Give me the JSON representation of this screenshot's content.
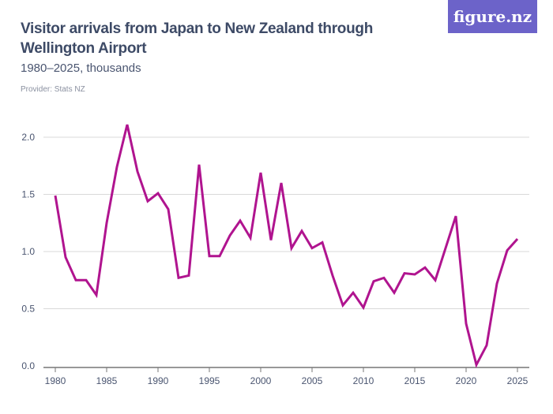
{
  "header": {
    "title": "Visitor arrivals from Japan to New Zealand through Wellington Airport",
    "subtitle": "1980–2025, thousands",
    "provider": "Provider: Stats NZ",
    "logo": "figure.nz"
  },
  "colors": {
    "line": "#b0148f",
    "logo_bg": "#6c63c9",
    "grid": "#d9d9d9"
  },
  "chart_data": {
    "type": "line",
    "title": "Visitor arrivals from Japan to New Zealand through Wellington Airport",
    "subtitle": "1980–2025, thousands",
    "xlim": [
      1980,
      2025
    ],
    "ylim": [
      0,
      2.0
    ],
    "grid": true,
    "x_ticks": [
      "1980",
      "1985",
      "1990",
      "1995",
      "2000",
      "2005",
      "2010",
      "2015",
      "2020",
      "2025"
    ],
    "y_ticks": [
      "0.0",
      "0.5",
      "1.0",
      "1.5",
      "2.0"
    ],
    "x": [
      1980,
      1981,
      1982,
      1983,
      1984,
      1985,
      1986,
      1987,
      1988,
      1989,
      1990,
      1991,
      1992,
      1993,
      1994,
      1995,
      1996,
      1997,
      1998,
      1999,
      2000,
      2001,
      2002,
      2003,
      2004,
      2005,
      2006,
      2007,
      2008,
      2009,
      2010,
      2011,
      2012,
      2013,
      2014,
      2015,
      2016,
      2017,
      2018,
      2019,
      2020,
      2021,
      2022,
      2023,
      2024,
      2025
    ],
    "values": [
      1.49,
      0.95,
      0.75,
      0.75,
      0.62,
      1.25,
      1.74,
      2.11,
      1.7,
      1.44,
      1.51,
      1.37,
      0.77,
      0.79,
      1.76,
      0.96,
      0.96,
      1.14,
      1.27,
      1.12,
      1.69,
      1.1,
      1.6,
      1.03,
      1.18,
      1.03,
      1.08,
      0.79,
      0.53,
      0.64,
      0.51,
      0.74,
      0.77,
      0.64,
      0.81,
      0.8,
      0.86,
      0.75,
      1.03,
      1.31,
      0.37,
      0.01,
      0.18,
      0.72,
      1.01,
      1.11
    ]
  }
}
